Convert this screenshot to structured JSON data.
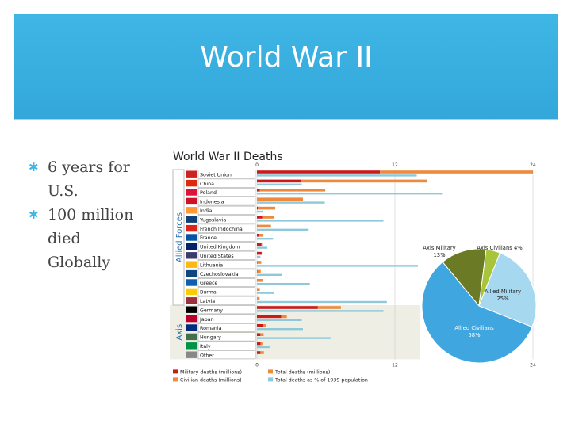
{
  "slide": {
    "title": "World War II",
    "bullets": [
      "6 years for U.S.",
      "100 million died Globally"
    ]
  },
  "colors": {
    "banner": "#3fb6e6",
    "military": "#cc1a1a",
    "civilian": "#ef8a3c",
    "percent": "#8ec9db",
    "axis_band": "#eeeee4",
    "pie_axis_military": "#6b7a24",
    "pie_axis_civilians": "#a8c43a",
    "pie_allied_military": "#a6d8f0",
    "pie_allied_civilians": "#3fa6e0"
  },
  "chart_data": [
    {
      "type": "bar",
      "title": "World War II Deaths",
      "group_labels": [
        "Allied Forces",
        "Axis"
      ],
      "categories": [
        "Soviet Union",
        "China",
        "Poland",
        "Indonesia",
        "India",
        "Yugoslavia",
        "French Indochina",
        "France",
        "United Kingdom",
        "United States",
        "Lithuania",
        "Czechoslovakia",
        "Greece",
        "Burma",
        "Latvia",
        "Germany",
        "Japan",
        "Romania",
        "Hungary",
        "Italy",
        "Other"
      ],
      "groups": [
        "Allied",
        "Allied",
        "Allied",
        "Allied",
        "Allied",
        "Allied",
        "Allied",
        "Allied",
        "Allied",
        "Allied",
        "Allied",
        "Allied",
        "Allied",
        "Allied",
        "Allied",
        "Axis",
        "Axis",
        "Axis",
        "Axis",
        "Axis",
        "Axis"
      ],
      "series": [
        {
          "name": "Military deaths (millions)",
          "values": [
            10.7,
            3.8,
            0.24,
            0,
            0.09,
            0.45,
            0.02,
            0.22,
            0.38,
            0.41,
            0.03,
            0.03,
            0.02,
            0.02,
            0.01,
            5.3,
            2.1,
            0.5,
            0.3,
            0.32,
            0.3
          ]
        },
        {
          "name": "Civilian deaths (millions)",
          "values": [
            13.3,
            11.0,
            5.7,
            4.0,
            1.5,
            1.05,
            1.2,
            0.34,
            0.07,
            0.01,
            0.35,
            0.3,
            0.5,
            0.23,
            0.22,
            2.0,
            0.5,
            0.3,
            0.28,
            0.15,
            0.3
          ]
        },
        {
          "name": "Total deaths as % of 1939 population",
          "values": [
            13.9,
            3.9,
            16.1,
            5.9,
            0.5,
            11.0,
            4.5,
            1.4,
            0.9,
            0.3,
            14.0,
            2.2,
            4.6,
            1.5,
            11.3,
            11.0,
            3.9,
            4.0,
            6.4,
            1.1,
            0
          ]
        }
      ],
      "xticks_top": [
        "0",
        "12",
        "24"
      ],
      "xticks_bottom": [
        "0",
        "12",
        "24"
      ],
      "xlim": [
        0,
        24
      ],
      "legend_placement": "bottom",
      "legend": [
        "Military deaths (millions)",
        "Total deaths (millions)",
        "Civilian deaths (millions)",
        "Total deaths as % of 1939 population"
      ]
    },
    {
      "type": "pie",
      "slices": [
        {
          "label": "Axis Military",
          "pct_label": "13%",
          "value": 13
        },
        {
          "label": "Axis Civilians",
          "pct_label": "4%",
          "value": 4
        },
        {
          "label": "Allied Military",
          "pct_label": "25%",
          "value": 25
        },
        {
          "label": "Allied Civilians",
          "pct_label": "58%",
          "value": 58
        }
      ]
    }
  ]
}
